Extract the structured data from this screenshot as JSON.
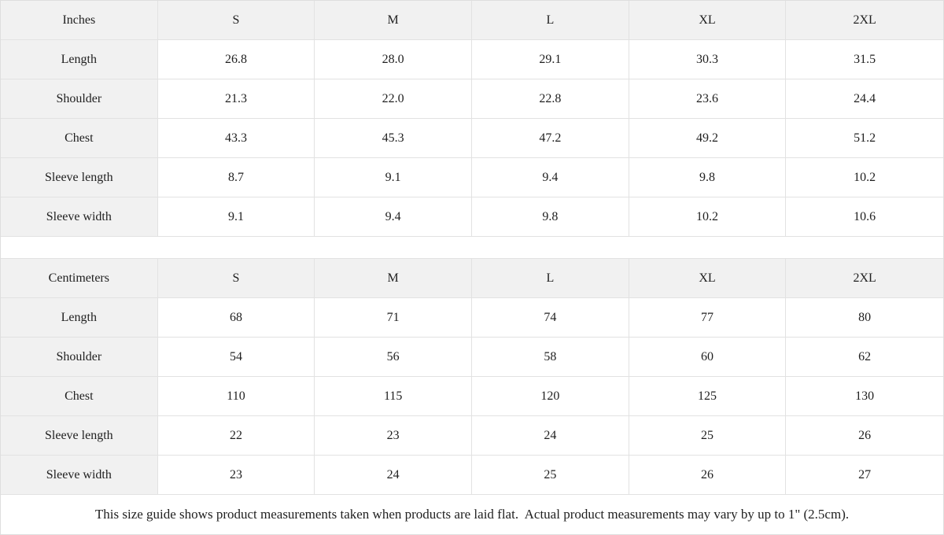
{
  "tables": [
    {
      "unit_label": "Inches",
      "sizes": [
        "S",
        "M",
        "L",
        "XL",
        "2XL"
      ],
      "rows": [
        {
          "label": "Length",
          "values": [
            "26.8",
            "28.0",
            "29.1",
            "30.3",
            "31.5"
          ]
        },
        {
          "label": "Shoulder",
          "values": [
            "21.3",
            "22.0",
            "22.8",
            "23.6",
            "24.4"
          ]
        },
        {
          "label": "Chest",
          "values": [
            "43.3",
            "45.3",
            "47.2",
            "49.2",
            "51.2"
          ]
        },
        {
          "label": "Sleeve length",
          "values": [
            "8.7",
            "9.1",
            "9.4",
            "9.8",
            "10.2"
          ]
        },
        {
          "label": "Sleeve width",
          "values": [
            "9.1",
            "9.4",
            "9.8",
            "10.2",
            "10.6"
          ]
        }
      ]
    },
    {
      "unit_label": "Centimeters",
      "sizes": [
        "S",
        "M",
        "L",
        "XL",
        "2XL"
      ],
      "rows": [
        {
          "label": "Length",
          "values": [
            "68",
            "71",
            "74",
            "77",
            "80"
          ]
        },
        {
          "label": "Shoulder",
          "values": [
            "54",
            "56",
            "58",
            "60",
            "62"
          ]
        },
        {
          "label": "Chest",
          "values": [
            "110",
            "115",
            "120",
            "125",
            "130"
          ]
        },
        {
          "label": "Sleeve length",
          "values": [
            "22",
            "23",
            "24",
            "25",
            "26"
          ]
        },
        {
          "label": "Sleeve width",
          "values": [
            "23",
            "24",
            "25",
            "26",
            "27"
          ]
        }
      ]
    }
  ],
  "footer_note": "This size guide shows product measurements taken when products are laid flat.  Actual product measurements may vary by up to 1\" (2.5cm).",
  "colors": {
    "header_bg": "#f1f1f1",
    "border": "#e2e2e2",
    "text": "#1f1f1f",
    "cell_bg": "#ffffff"
  }
}
